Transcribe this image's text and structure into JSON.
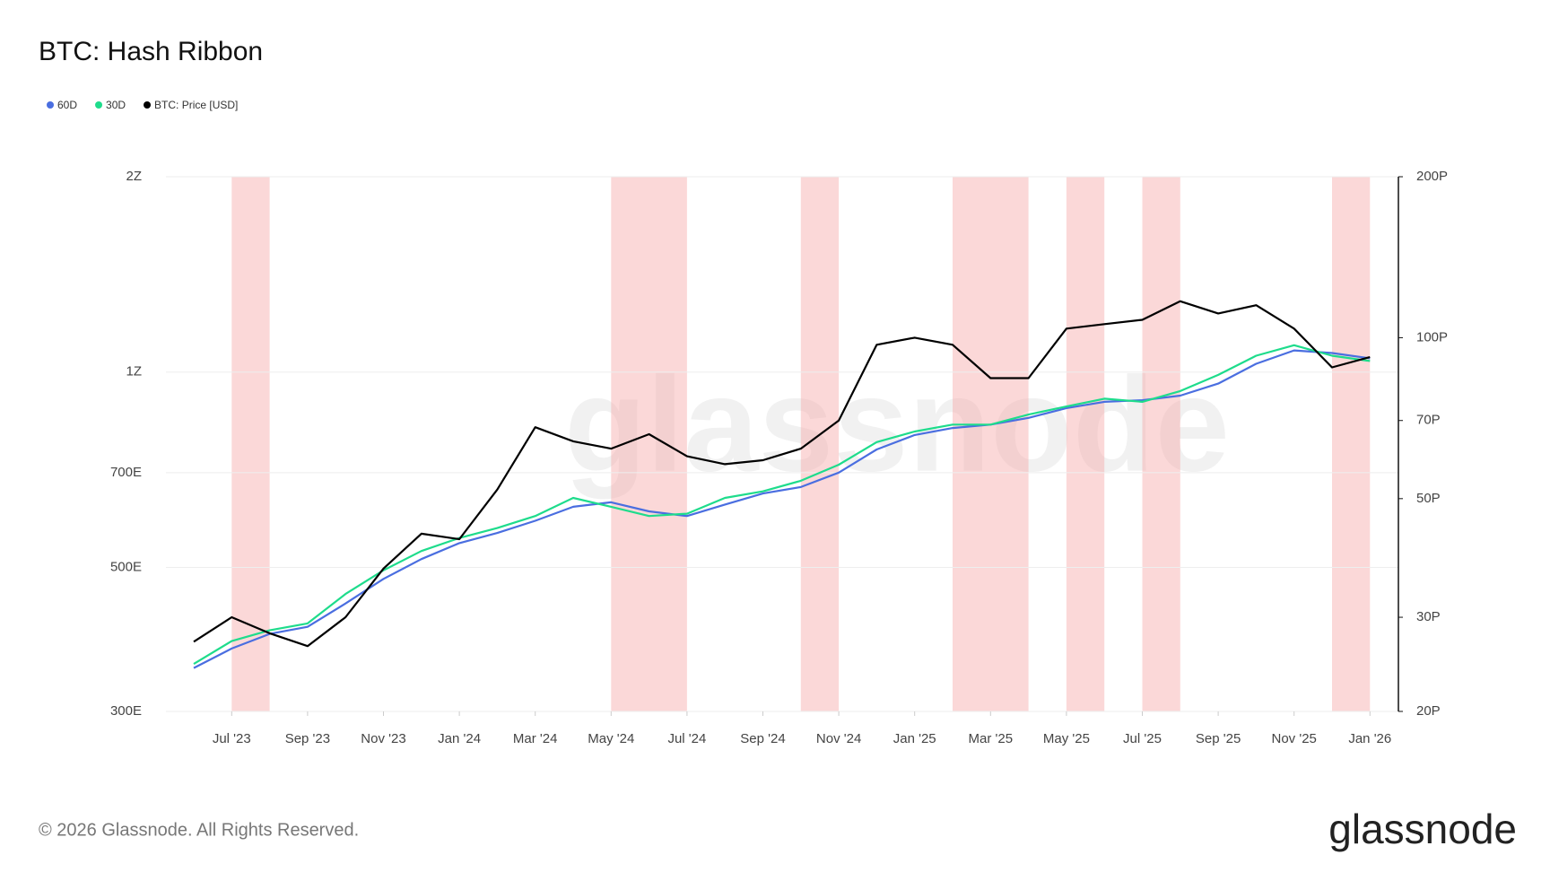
{
  "chart_data": {
    "type": "line",
    "title": "BTC: Hash Ribbon",
    "footer": "© 2026 Glassnode. All Rights Reserved.",
    "brand": "glassnode",
    "log_scale": true,
    "grid": true,
    "legend_position": "top-left",
    "x": [
      "2023-06",
      "2023-07",
      "2023-08",
      "2023-09",
      "2023-10",
      "2023-11",
      "2023-12",
      "2024-01",
      "2024-02",
      "2024-03",
      "2024-04",
      "2024-05",
      "2024-06",
      "2024-07",
      "2024-08",
      "2024-09",
      "2024-10",
      "2024-11",
      "2024-12",
      "2025-01",
      "2025-02",
      "2025-03",
      "2025-04",
      "2025-05",
      "2025-06",
      "2025-07",
      "2025-08",
      "2025-09",
      "2025-10",
      "2025-11",
      "2025-12",
      "2026-01"
    ],
    "xticks": [
      {
        "value": "2023-07",
        "label": "Jul '23"
      },
      {
        "value": "2023-09",
        "label": "Sep '23"
      },
      {
        "value": "2023-11",
        "label": "Nov '23"
      },
      {
        "value": "2024-01",
        "label": "Jan '24"
      },
      {
        "value": "2024-03",
        "label": "Mar '24"
      },
      {
        "value": "2024-05",
        "label": "May '24"
      },
      {
        "value": "2024-07",
        "label": "Jul '24"
      },
      {
        "value": "2024-09",
        "label": "Sep '24"
      },
      {
        "value": "2024-11",
        "label": "Nov '24"
      },
      {
        "value": "2025-01",
        "label": "Jan '25"
      },
      {
        "value": "2025-03",
        "label": "Mar '25"
      },
      {
        "value": "2025-05",
        "label": "May '25"
      },
      {
        "value": "2025-07",
        "label": "Jul '25"
      },
      {
        "value": "2025-09",
        "label": "Sep '25"
      },
      {
        "value": "2025-11",
        "label": "Nov '25"
      },
      {
        "value": "2026-01",
        "label": "Jan '26"
      }
    ],
    "ylim": [
      300,
      2000
    ],
    "yticks": [
      {
        "value": 300,
        "label": "300E"
      },
      {
        "value": 500,
        "label": "500E"
      },
      {
        "value": 700,
        "label": "700E"
      },
      {
        "value": 1000,
        "label": "1Z"
      },
      {
        "value": 2000,
        "label": "2Z"
      }
    ],
    "y2lim": [
      20,
      200
    ],
    "y2ticks": [
      {
        "value": 20,
        "label": "20P"
      },
      {
        "value": 30,
        "label": "30P"
      },
      {
        "value": 50,
        "label": "50P"
      },
      {
        "value": 70,
        "label": "70P"
      },
      {
        "value": 100,
        "label": "100P"
      },
      {
        "value": 200,
        "label": "200P"
      }
    ],
    "shaded_color": "#f7a8a8",
    "shaded_ranges": [
      [
        "2023-07",
        "2023-08"
      ],
      [
        "2024-05",
        "2024-07"
      ],
      [
        "2024-10",
        "2024-11"
      ],
      [
        "2025-02",
        "2025-04"
      ],
      [
        "2025-05",
        "2025-06"
      ],
      [
        "2025-07",
        "2025-08"
      ],
      [
        "2025-12",
        "2026-01"
      ]
    ],
    "series": [
      {
        "name": "60D",
        "color": "#4a6ee0",
        "values": [
          350,
          375,
          395,
          405,
          440,
          480,
          515,
          545,
          565,
          590,
          620,
          630,
          610,
          600,
          625,
          650,
          665,
          700,
          760,
          800,
          820,
          830,
          850,
          880,
          900,
          905,
          920,
          960,
          1030,
          1080,
          1070,
          1050
        ]
      },
      {
        "name": "30D",
        "color": "#1edc8c",
        "values": [
          355,
          385,
          400,
          410,
          455,
          495,
          530,
          555,
          575,
          600,
          640,
          620,
          600,
          605,
          640,
          655,
          680,
          720,
          780,
          810,
          830,
          830,
          860,
          885,
          910,
          900,
          935,
          990,
          1060,
          1100,
          1060,
          1040
        ]
      },
      {
        "name": "BTC: Price [USD]",
        "color": "#000000",
        "axis": "y2",
        "values": [
          27,
          30,
          28,
          26.5,
          30,
          37,
          43,
          42,
          52,
          68,
          64,
          62,
          66,
          60,
          58,
          59,
          62,
          70,
          97,
          100,
          97,
          84,
          84,
          104,
          106,
          108,
          117,
          111,
          115,
          104,
          88,
          92
        ]
      }
    ]
  }
}
